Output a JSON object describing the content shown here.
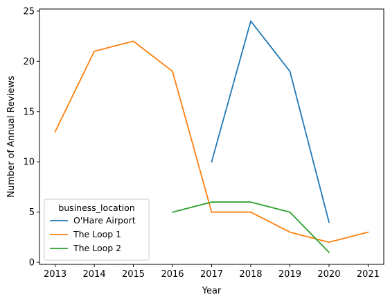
{
  "chart_data": {
    "type": "line",
    "xlabel": "Year",
    "ylabel": "Number of Annual Reviews",
    "x_ticks": [
      2013,
      2014,
      2015,
      2016,
      2017,
      2018,
      2019,
      2020,
      2021
    ],
    "y_ticks": [
      0,
      5,
      10,
      15,
      20,
      25
    ],
    "xlim": [
      2012.6,
      2021.4
    ],
    "ylim": [
      -0.2,
      25.2
    ],
    "grid": false,
    "legend": {
      "title": "business_location",
      "placement": "lower-left"
    },
    "series": [
      {
        "name": "O'Hare Airport",
        "color": "#1f77b4",
        "x": [
          2017,
          2018,
          2019,
          2020
        ],
        "y": [
          10,
          24,
          19,
          4
        ]
      },
      {
        "name": "The Loop 1",
        "color": "#ff7f0e",
        "x": [
          2013,
          2014,
          2015,
          2016,
          2017,
          2018,
          2019,
          2020,
          2021
        ],
        "y": [
          13,
          21,
          22,
          19,
          5,
          5,
          3,
          2,
          3
        ]
      },
      {
        "name": "The Loop 2",
        "color": "#2ca02c",
        "x": [
          2016,
          2017,
          2018,
          2019,
          2020
        ],
        "y": [
          5,
          6,
          6,
          5,
          1
        ]
      }
    ]
  }
}
